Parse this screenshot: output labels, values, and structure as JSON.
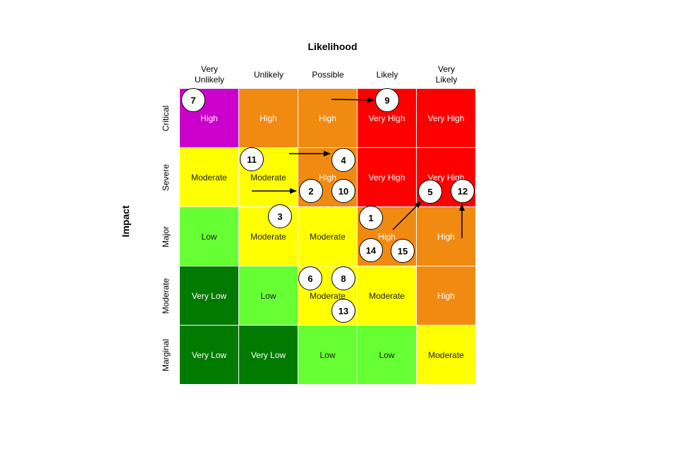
{
  "title": "Likelihood",
  "y_axis_label": "Impact",
  "likelihood": [
    "Very Unlikely",
    "Unlikely",
    "Possible",
    "Likely",
    "Very Likely"
  ],
  "impact": [
    "Critical",
    "Severe",
    "Major",
    "Moderate",
    "Marginal"
  ],
  "colors": {
    "Very High": "#ff0000",
    "High": "#f08a10",
    "High-purple": "#cc00cc",
    "Moderate": "#ffff00",
    "Low": "#66ff33",
    "Very Low": "#007a00"
  },
  "grid": [
    [
      {
        "label": "High",
        "color": "#cc00cc"
      },
      {
        "label": "High",
        "color": "#f08a10"
      },
      {
        "label": "High",
        "color": "#f08a10"
      },
      {
        "label": "Very High",
        "color": "#ff0000"
      },
      {
        "label": "Very High",
        "color": "#ff0000"
      }
    ],
    [
      {
        "label": "Moderate",
        "color": "#ffff00"
      },
      {
        "label": "Moderate",
        "color": "#ffff00"
      },
      {
        "label": "High",
        "color": "#f08a10"
      },
      {
        "label": "Very High",
        "color": "#ff0000"
      },
      {
        "label": "Very High",
        "color": "#ff0000"
      }
    ],
    [
      {
        "label": "Low",
        "color": "#66ff33"
      },
      {
        "label": "Moderate",
        "color": "#ffff00"
      },
      {
        "label": "Moderate",
        "color": "#ffff00"
      },
      {
        "label": "High",
        "color": "#f08a10"
      },
      {
        "label": "High",
        "color": "#f08a10"
      }
    ],
    [
      {
        "label": "Very Low",
        "color": "#007a00"
      },
      {
        "label": "Low",
        "color": "#66ff33"
      },
      {
        "label": "Moderate",
        "color": "#ffff00"
      },
      {
        "label": "Moderate",
        "color": "#ffff00"
      },
      {
        "label": "High",
        "color": "#f08a10"
      }
    ],
    [
      {
        "label": "Very Low",
        "color": "#007a00"
      },
      {
        "label": "Very Low",
        "color": "#007a00"
      },
      {
        "label": "Low",
        "color": "#66ff33"
      },
      {
        "label": "Low",
        "color": "#66ff33"
      },
      {
        "label": "Moderate",
        "color": "#ffff00"
      }
    ]
  ],
  "risks": [
    "1",
    "2",
    "3",
    "4",
    "5",
    "6",
    "7",
    "8",
    "9",
    "10",
    "11",
    "12",
    "13",
    "14",
    "15"
  ]
}
